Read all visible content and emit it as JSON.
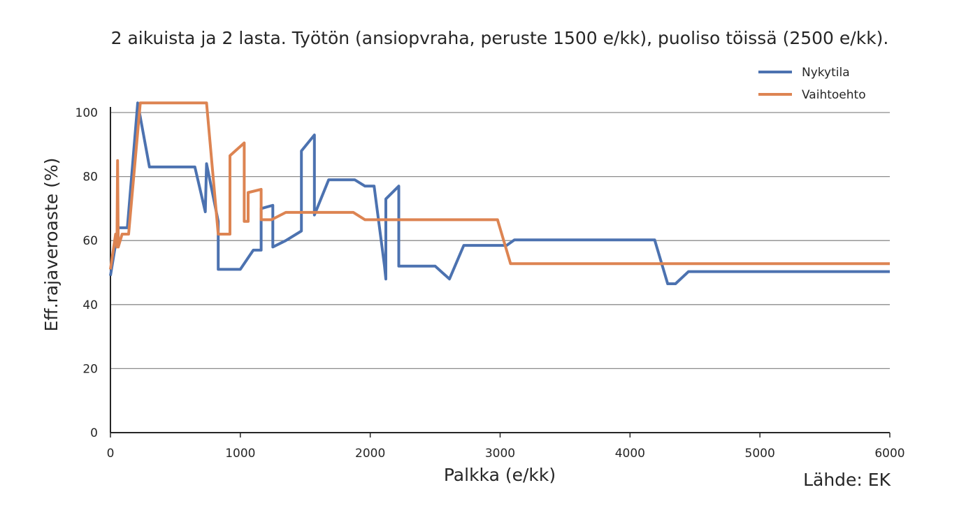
{
  "chart_data": {
    "type": "line",
    "title": "2 aikuista ja 2 lasta. Työtön (ansiopvraha, peruste 1500 e/kk), puoliso töissä (2500 e/kk).",
    "xlabel": "Palkka (e/kk)",
    "ylabel": "Eff.rajaveroaste (%)",
    "source": "Lähde: EK",
    "xlim": [
      0,
      6000
    ],
    "ylim": [
      0,
      100
    ],
    "xticks": [
      0,
      1000,
      2000,
      3000,
      4000,
      5000,
      6000
    ],
    "yticks": [
      0,
      20,
      40,
      60,
      80,
      100
    ],
    "grid": "horizontal",
    "legend_position": "top-right",
    "series": [
      {
        "name": "Nykytila",
        "color": "#4c72b0",
        "points": [
          [
            0,
            49
          ],
          [
            60,
            64
          ],
          [
            130,
            64
          ],
          [
            210,
            103
          ],
          [
            300,
            83
          ],
          [
            650,
            83
          ],
          [
            730,
            69
          ],
          [
            740,
            84
          ],
          [
            830,
            66
          ],
          [
            830,
            51
          ],
          [
            1000,
            51
          ],
          [
            1100,
            57
          ],
          [
            1160,
            57
          ],
          [
            1160,
            70
          ],
          [
            1250,
            71
          ],
          [
            1250,
            58
          ],
          [
            1350,
            60
          ],
          [
            1470,
            63
          ],
          [
            1470,
            88
          ],
          [
            1570,
            93
          ],
          [
            1570,
            68
          ],
          [
            1680,
            79
          ],
          [
            1880,
            79
          ],
          [
            1960,
            77
          ],
          [
            2030,
            77
          ],
          [
            2110,
            52
          ],
          [
            2120,
            48
          ],
          [
            2120,
            73
          ],
          [
            2220,
            77
          ],
          [
            2220,
            52
          ],
          [
            2500,
            52
          ],
          [
            2610,
            48
          ],
          [
            2720,
            58.5
          ],
          [
            3050,
            58.5
          ],
          [
            3110,
            60.2
          ],
          [
            4190,
            60.2
          ],
          [
            4290,
            46.5
          ],
          [
            4350,
            46.5
          ],
          [
            4450,
            50.3
          ],
          [
            6000,
            50.3
          ]
        ]
      },
      {
        "name": "Vaihtoehto",
        "color": "#dd8452",
        "points": [
          [
            0,
            51
          ],
          [
            40,
            62
          ],
          [
            50,
            58
          ],
          [
            55,
            85
          ],
          [
            60,
            58
          ],
          [
            90,
            62
          ],
          [
            140,
            62
          ],
          [
            230,
            103
          ],
          [
            740,
            103
          ],
          [
            830,
            62
          ],
          [
            920,
            62
          ],
          [
            920,
            86.5
          ],
          [
            1030,
            90.5
          ],
          [
            1030,
            66
          ],
          [
            1060,
            66
          ],
          [
            1060,
            75
          ],
          [
            1160,
            76
          ],
          [
            1160,
            66.5
          ],
          [
            1240,
            66.5
          ],
          [
            1350,
            68.8
          ],
          [
            1870,
            68.8
          ],
          [
            1960,
            66.5
          ],
          [
            2980,
            66.5
          ],
          [
            3080,
            52.8
          ],
          [
            6000,
            52.8
          ]
        ]
      }
    ]
  }
}
